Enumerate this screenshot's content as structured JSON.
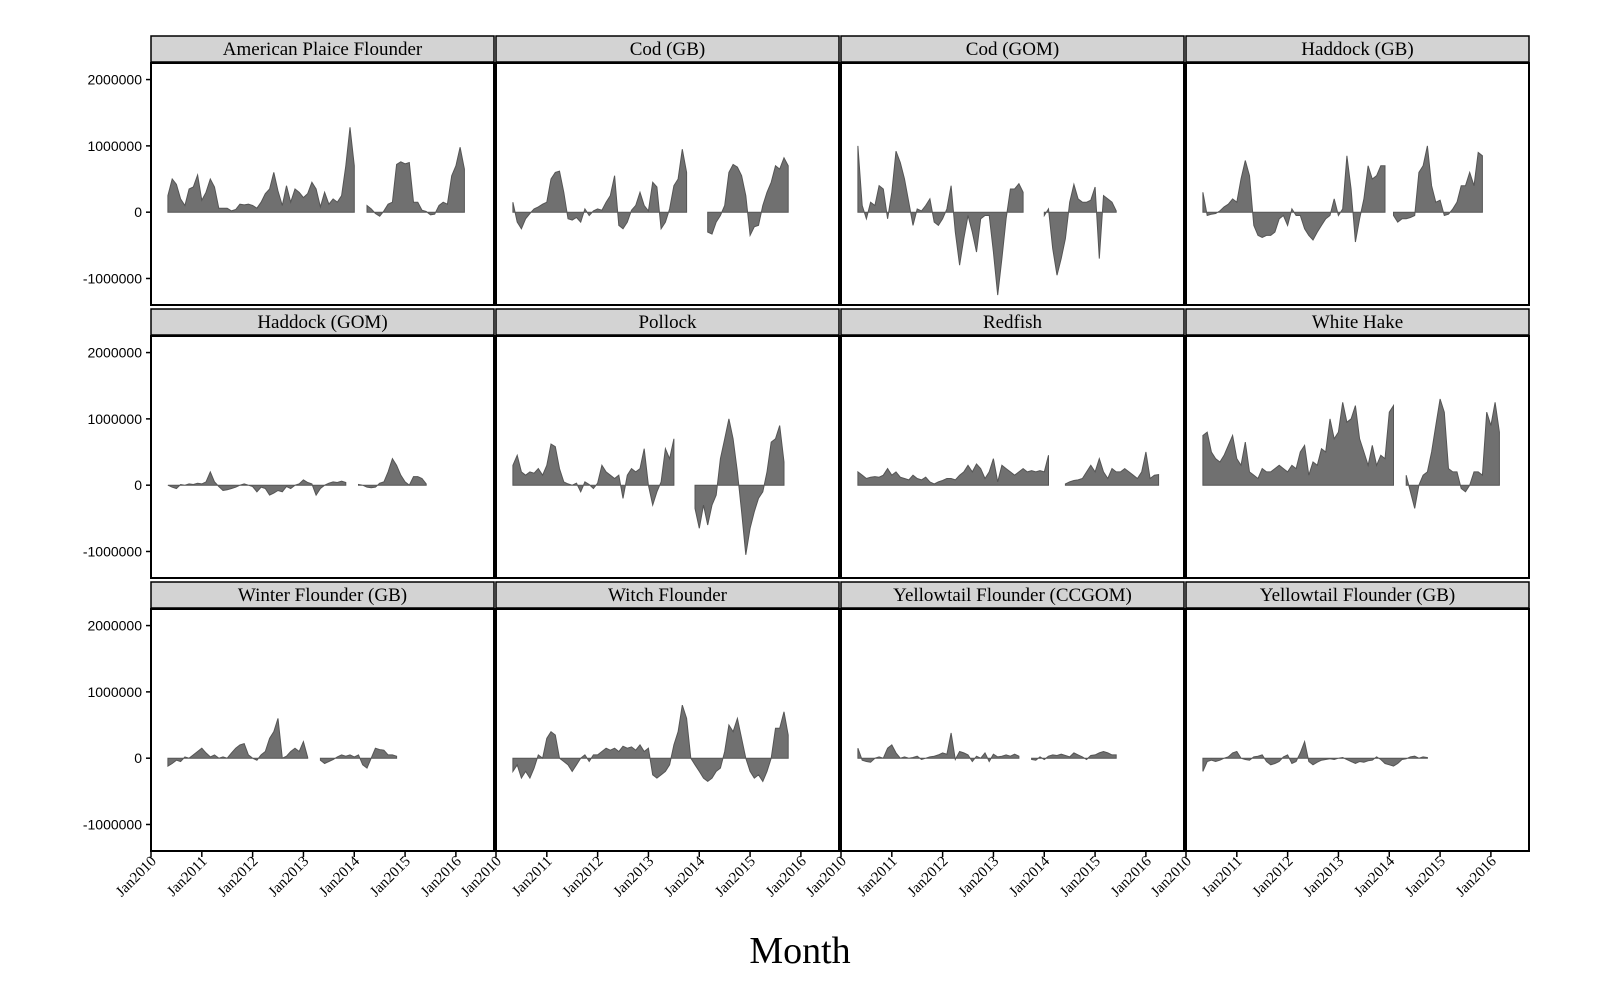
{
  "chart_data": {
    "type": "area",
    "xlabel": "Month",
    "ylabel": "",
    "ylim": [
      -1400000,
      2250000
    ],
    "yticks": [
      -1000000,
      0,
      1000000,
      2000000
    ],
    "ytick_labels": [
      "-1000000",
      "0",
      "1000000",
      "2000000"
    ],
    "xlim": [
      "2010-01",
      "2016-10"
    ],
    "xticks": [
      "2010-01",
      "2011-01",
      "2012-01",
      "2013-01",
      "2014-01",
      "2015-01",
      "2016-01"
    ],
    "xtick_labels": [
      "Jan2010",
      "Jan2011",
      "Jan2012",
      "Jan2013",
      "Jan2014",
      "Jan2015",
      "Jan2016"
    ],
    "grid": false,
    "layout": "facet grid, 3 rows x 4 columns",
    "fill_color": "#707070",
    "strip_color": "#d3d3d3",
    "x_start": "2010-05",
    "x_step": "1 month",
    "panels": [
      {
        "name": "American Plaice Flounder",
        "values": [
          250000,
          500000,
          420000,
          200000,
          100000,
          350000,
          380000,
          560000,
          180000,
          300000,
          500000,
          380000,
          60000,
          60000,
          60000,
          20000,
          40000,
          120000,
          110000,
          120000,
          100000,
          60000,
          150000,
          280000,
          350000,
          600000,
          320000,
          100000,
          400000,
          150000,
          350000,
          300000,
          220000,
          280000,
          450000,
          350000,
          80000,
          300000,
          120000,
          200000,
          150000,
          250000,
          700000,
          1280000,
          700000,
          null,
          null,
          100000,
          50000,
          -20000,
          -60000,
          20000,
          120000,
          150000,
          720000,
          760000,
          730000,
          750000,
          150000,
          150000,
          30000,
          10000,
          -40000,
          -30000,
          100000,
          150000,
          120000,
          550000,
          700000,
          980000,
          650000
        ]
      },
      {
        "name": "Cod (GB)",
        "values": [
          150000,
          -150000,
          -250000,
          -100000,
          -20000,
          50000,
          80000,
          120000,
          150000,
          500000,
          600000,
          620000,
          300000,
          -100000,
          -120000,
          -80000,
          -150000,
          50000,
          -50000,
          20000,
          50000,
          30000,
          150000,
          250000,
          550000,
          -200000,
          -250000,
          -150000,
          30000,
          100000,
          300000,
          100000,
          20000,
          450000,
          380000,
          -250000,
          -150000,
          50000,
          400000,
          500000,
          950000,
          600000,
          null,
          null,
          null,
          null,
          -300000,
          -330000,
          -150000,
          -50000,
          100000,
          600000,
          720000,
          680000,
          550000,
          250000,
          -350000,
          -220000,
          -200000,
          100000,
          300000,
          450000,
          700000,
          650000,
          820000,
          700000
        ]
      },
      {
        "name": "Cod (GOM)",
        "values": [
          1000000,
          100000,
          -100000,
          150000,
          100000,
          400000,
          350000,
          -100000,
          300000,
          920000,
          750000,
          500000,
          150000,
          -200000,
          50000,
          20000,
          100000,
          200000,
          -150000,
          -200000,
          -100000,
          50000,
          400000,
          -300000,
          -800000,
          -400000,
          -50000,
          -300000,
          -600000,
          -100000,
          -50000,
          -50000,
          -600000,
          -1250000,
          -700000,
          -100000,
          350000,
          350000,
          430000,
          300000,
          null,
          null,
          null,
          null,
          -50000,
          50000,
          -550000,
          -950000,
          -700000,
          -400000,
          150000,
          420000,
          200000,
          150000,
          150000,
          180000,
          380000,
          -700000,
          250000,
          200000,
          150000,
          20000
        ]
      },
      {
        "name": "Haddock (GB)",
        "values": [
          300000,
          -50000,
          -30000,
          -20000,
          20000,
          80000,
          120000,
          200000,
          150000,
          500000,
          780000,
          550000,
          -200000,
          -350000,
          -380000,
          -350000,
          -350000,
          -300000,
          -100000,
          -50000,
          -200000,
          50000,
          -50000,
          -50000,
          -250000,
          -350000,
          -420000,
          -300000,
          -200000,
          -100000,
          -50000,
          200000,
          -50000,
          50000,
          850000,
          350000,
          -450000,
          -100000,
          200000,
          700000,
          500000,
          550000,
          700000,
          700000,
          null,
          -50000,
          -150000,
          -100000,
          -100000,
          -80000,
          -50000,
          600000,
          700000,
          1000000,
          400000,
          150000,
          180000,
          -50000,
          -30000,
          50000,
          150000,
          400000,
          400000,
          600000,
          400000,
          900000,
          850000
        ]
      },
      {
        "name": "Haddock (GOM)",
        "values": [
          0,
          -30000,
          -50000,
          10000,
          0,
          20000,
          10000,
          30000,
          20000,
          50000,
          200000,
          50000,
          -20000,
          -80000,
          -70000,
          -50000,
          -30000,
          0,
          20000,
          0,
          -20000,
          -100000,
          -30000,
          -50000,
          -150000,
          -120000,
          -80000,
          -100000,
          -20000,
          -50000,
          0,
          20000,
          80000,
          40000,
          20000,
          -150000,
          -50000,
          0,
          30000,
          50000,
          40000,
          60000,
          40000,
          null,
          null,
          10000,
          0,
          -30000,
          -40000,
          -30000,
          30000,
          50000,
          200000,
          400000,
          300000,
          150000,
          50000,
          0,
          130000,
          130000,
          100000,
          20000
        ]
      },
      {
        "name": "Pollock",
        "values": [
          300000,
          450000,
          200000,
          150000,
          200000,
          180000,
          250000,
          150000,
          300000,
          620000,
          580000,
          250000,
          50000,
          20000,
          0,
          30000,
          -100000,
          50000,
          10000,
          -50000,
          30000,
          300000,
          200000,
          150000,
          100000,
          150000,
          -200000,
          150000,
          250000,
          200000,
          250000,
          550000,
          0,
          -300000,
          -100000,
          50000,
          550000,
          400000,
          700000,
          null,
          null,
          null,
          null,
          -350000,
          -650000,
          -300000,
          -600000,
          -300000,
          -150000,
          400000,
          700000,
          1000000,
          700000,
          200000,
          -400000,
          -1050000,
          -650000,
          -400000,
          -200000,
          -100000,
          200000,
          650000,
          700000,
          900000,
          350000
        ]
      },
      {
        "name": "Redfish",
        "values": [
          200000,
          150000,
          100000,
          120000,
          130000,
          120000,
          150000,
          250000,
          150000,
          200000,
          120000,
          100000,
          80000,
          150000,
          100000,
          80000,
          120000,
          50000,
          20000,
          50000,
          70000,
          100000,
          100000,
          80000,
          150000,
          200000,
          300000,
          200000,
          320000,
          250000,
          100000,
          200000,
          400000,
          50000,
          300000,
          250000,
          200000,
          150000,
          200000,
          250000,
          200000,
          220000,
          200000,
          220000,
          200000,
          450000,
          null,
          null,
          null,
          20000,
          50000,
          70000,
          80000,
          100000,
          200000,
          300000,
          200000,
          400000,
          200000,
          100000,
          250000,
          200000,
          200000,
          250000,
          200000,
          150000,
          100000,
          200000,
          500000,
          100000,
          150000,
          160000
        ]
      },
      {
        "name": "White Hake",
        "values": [
          750000,
          800000,
          500000,
          400000,
          350000,
          450000,
          600000,
          750000,
          400000,
          300000,
          650000,
          200000,
          150000,
          100000,
          250000,
          200000,
          200000,
          250000,
          300000,
          250000,
          200000,
          300000,
          250000,
          500000,
          600000,
          150000,
          350000,
          300000,
          550000,
          500000,
          1000000,
          700000,
          800000,
          1250000,
          950000,
          1000000,
          1200000,
          700000,
          500000,
          300000,
          600000,
          300000,
          450000,
          400000,
          1100000,
          1200000,
          null,
          null,
          150000,
          -100000,
          -350000,
          0,
          150000,
          200000,
          500000,
          900000,
          1300000,
          1100000,
          250000,
          200000,
          200000,
          -50000,
          -100000,
          0,
          200000,
          200000,
          150000,
          1100000,
          900000,
          1250000,
          800000
        ]
      },
      {
        "name": "Winter Flounder (GB)",
        "values": [
          -120000,
          -80000,
          -30000,
          -50000,
          20000,
          0,
          50000,
          100000,
          150000,
          80000,
          20000,
          50000,
          0,
          20000,
          0,
          80000,
          150000,
          200000,
          220000,
          50000,
          0,
          -30000,
          50000,
          100000,
          300000,
          400000,
          600000,
          0,
          30000,
          100000,
          150000,
          100000,
          250000,
          10000,
          null,
          null,
          -30000,
          -80000,
          -50000,
          -20000,
          20000,
          50000,
          30000,
          50000,
          20000,
          50000,
          -100000,
          -150000,
          0,
          150000,
          130000,
          120000,
          50000,
          50000,
          30000
        ]
      },
      {
        "name": "Witch Flounder",
        "values": [
          -200000,
          -100000,
          -300000,
          -200000,
          -300000,
          -150000,
          50000,
          0,
          300000,
          400000,
          350000,
          0,
          -50000,
          -100000,
          -200000,
          -100000,
          0,
          50000,
          -50000,
          50000,
          50000,
          100000,
          150000,
          120000,
          150000,
          100000,
          180000,
          150000,
          170000,
          120000,
          200000,
          100000,
          150000,
          -250000,
          -300000,
          -250000,
          -200000,
          -100000,
          200000,
          400000,
          800000,
          600000,
          0,
          -100000,
          -200000,
          -300000,
          -350000,
          -300000,
          -200000,
          -150000,
          100000,
          500000,
          400000,
          600000,
          300000,
          0,
          -200000,
          -300000,
          -250000,
          -350000,
          -200000,
          0,
          450000,
          450000,
          700000,
          350000
        ]
      },
      {
        "name": "Yellowtail Flounder (CCGOM)",
        "values": [
          150000,
          -30000,
          -50000,
          -60000,
          0,
          20000,
          0,
          150000,
          200000,
          80000,
          0,
          20000,
          0,
          10000,
          30000,
          -20000,
          0,
          20000,
          30000,
          50000,
          80000,
          60000,
          380000,
          -20000,
          100000,
          80000,
          50000,
          -50000,
          30000,
          0,
          80000,
          -50000,
          60000,
          20000,
          30000,
          50000,
          30000,
          60000,
          30000,
          null,
          null,
          -20000,
          -30000,
          20000,
          -20000,
          30000,
          50000,
          40000,
          60000,
          40000,
          20000,
          80000,
          50000,
          20000,
          -20000,
          40000,
          50000,
          80000,
          100000,
          80000,
          50000,
          50000
        ]
      },
      {
        "name": "Yellowtail Flounder (GB)",
        "values": [
          -200000,
          -50000,
          -30000,
          -50000,
          -30000,
          0,
          20000,
          80000,
          100000,
          0,
          -20000,
          -30000,
          20000,
          30000,
          50000,
          -50000,
          -100000,
          -80000,
          -50000,
          20000,
          50000,
          -80000,
          -50000,
          80000,
          250000,
          -50000,
          -100000,
          -60000,
          -30000,
          -20000,
          -10000,
          -20000,
          0,
          10000,
          -20000,
          -50000,
          -80000,
          -50000,
          -60000,
          -40000,
          -30000,
          20000,
          -20000,
          -80000,
          -100000,
          -120000,
          -80000,
          -20000,
          -10000,
          20000,
          30000,
          0,
          20000,
          10000
        ]
      }
    ]
  }
}
